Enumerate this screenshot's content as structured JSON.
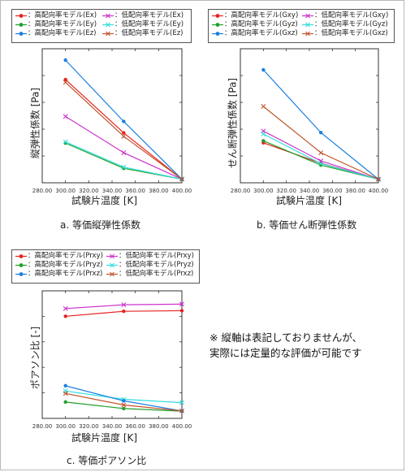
{
  "chart_data": [
    {
      "type": "line",
      "title": "",
      "caption": "a. 等価縦弾性係数",
      "xlabel": "試験片温度 [K]",
      "ylabel": "縦弾性係数 [Pa]",
      "xlim": [
        280,
        400
      ],
      "ylim": [
        0,
        1
      ],
      "x_ticks": [
        "280.00",
        "300.00",
        "320.00",
        "340.00",
        "360.00",
        "380.00",
        "400.00"
      ],
      "grid": false,
      "legend_position": "top",
      "x": [
        300,
        350,
        400
      ],
      "series": [
        {
          "name": "高配向率モデル(Ex)",
          "color": "#e8231f",
          "marker": "dot",
          "values": [
            0.838,
            0.395,
            0.01
          ]
        },
        {
          "name": "低配向率モデル(Ex)",
          "color": "#cc33cc",
          "marker": "x",
          "values": [
            0.531,
            0.23,
            0.01
          ]
        },
        {
          "name": "高配向率モデル(Ey)",
          "color": "#22a02a",
          "marker": "dot",
          "values": [
            0.31,
            0.1,
            0.01
          ]
        },
        {
          "name": "低配向率モデル(Ey)",
          "color": "#33dddd",
          "marker": "x",
          "values": [
            0.32,
            0.11,
            0.01
          ]
        },
        {
          "name": "高配向率モデル(Ez)",
          "color": "#1a7fe0",
          "marker": "dot",
          "values": [
            1.0,
            0.49,
            0.01
          ]
        },
        {
          "name": "低配向率モデル(Ez)",
          "color": "#c0542a",
          "marker": "x",
          "values": [
            0.815,
            0.366,
            0.01
          ]
        }
      ]
    },
    {
      "type": "line",
      "title": "",
      "caption": "b. 等価せん断弾性係数",
      "xlabel": "試験片温度 [K]",
      "ylabel": "せん断弾性係数 [Pa]",
      "xlim": [
        280,
        400
      ],
      "ylim": [
        0,
        1
      ],
      "x_ticks": [
        "280.00",
        "300.00",
        "320.00",
        "340.00",
        "360.00",
        "380.00",
        "400.00"
      ],
      "grid": false,
      "legend_position": "top",
      "x": [
        300,
        350,
        400
      ],
      "series": [
        {
          "name": "高配向率モデル(Gxy)",
          "color": "#e8231f",
          "marker": "dot",
          "values": [
            0.34,
            0.155,
            0.01
          ]
        },
        {
          "name": "低配向率モデル(Gxy)",
          "color": "#cc33cc",
          "marker": "x",
          "values": [
            0.446,
            0.176,
            0.01
          ]
        },
        {
          "name": "高配向率モデル(Gyz)",
          "color": "#22a02a",
          "marker": "dot",
          "values": [
            0.358,
            0.138,
            0.01
          ]
        },
        {
          "name": "低配向率モデル(Gyz)",
          "color": "#33dddd",
          "marker": "x",
          "values": [
            0.42,
            0.152,
            0.01
          ]
        },
        {
          "name": "高配向率モデル(Gxz)",
          "color": "#1a7fe0",
          "marker": "dot",
          "values": [
            1.0,
            0.432,
            0.01
          ]
        },
        {
          "name": "低配向率モデル(Gxz)",
          "color": "#c0542a",
          "marker": "x",
          "values": [
            0.669,
            0.25,
            0.01
          ]
        }
      ]
    },
    {
      "type": "line",
      "title": "",
      "caption": "c. 等価ポアソン比",
      "xlabel": "試験片温度 [K]",
      "ylabel": "ポアソン比 [-]",
      "xlim": [
        280,
        400
      ],
      "ylim": [
        0,
        1
      ],
      "x_ticks": [
        "280.00",
        "300.00",
        "320.00",
        "340.00",
        "360.00",
        "380.00",
        "400.00"
      ],
      "grid": false,
      "legend_position": "top",
      "x": [
        300,
        350,
        400
      ],
      "series": [
        {
          "name": "高配向率モデル(Prxy)",
          "color": "#e8231f",
          "marker": "dot",
          "values": [
            0.813,
            0.855,
            0.86
          ]
        },
        {
          "name": "低配向率モデル(Prxy)",
          "color": "#cc33cc",
          "marker": "x",
          "values": [
            0.878,
            0.91,
            0.915
          ]
        },
        {
          "name": "高配向率モデル(Pryz)",
          "color": "#22a02a",
          "marker": "dot",
          "values": [
            0.09,
            0.035,
            0.013
          ]
        },
        {
          "name": "低配向率モデル(Pryz)",
          "color": "#33dddd",
          "marker": "x",
          "values": [
            0.183,
            0.113,
            0.085
          ]
        },
        {
          "name": "高配向率モデル(Prxz)",
          "color": "#1a7fe0",
          "marker": "dot",
          "values": [
            0.227,
            0.1,
            0.015
          ]
        },
        {
          "name": "低配向率モデル(Prxz)",
          "color": "#c0542a",
          "marker": "x",
          "values": [
            0.162,
            0.065,
            0.015
          ]
        }
      ]
    }
  ],
  "legend_prefix": "：",
  "note": {
    "line1": "※ 縦軸は表記しておりませんが、",
    "line2": "実際には定量的な評価が可能です"
  }
}
